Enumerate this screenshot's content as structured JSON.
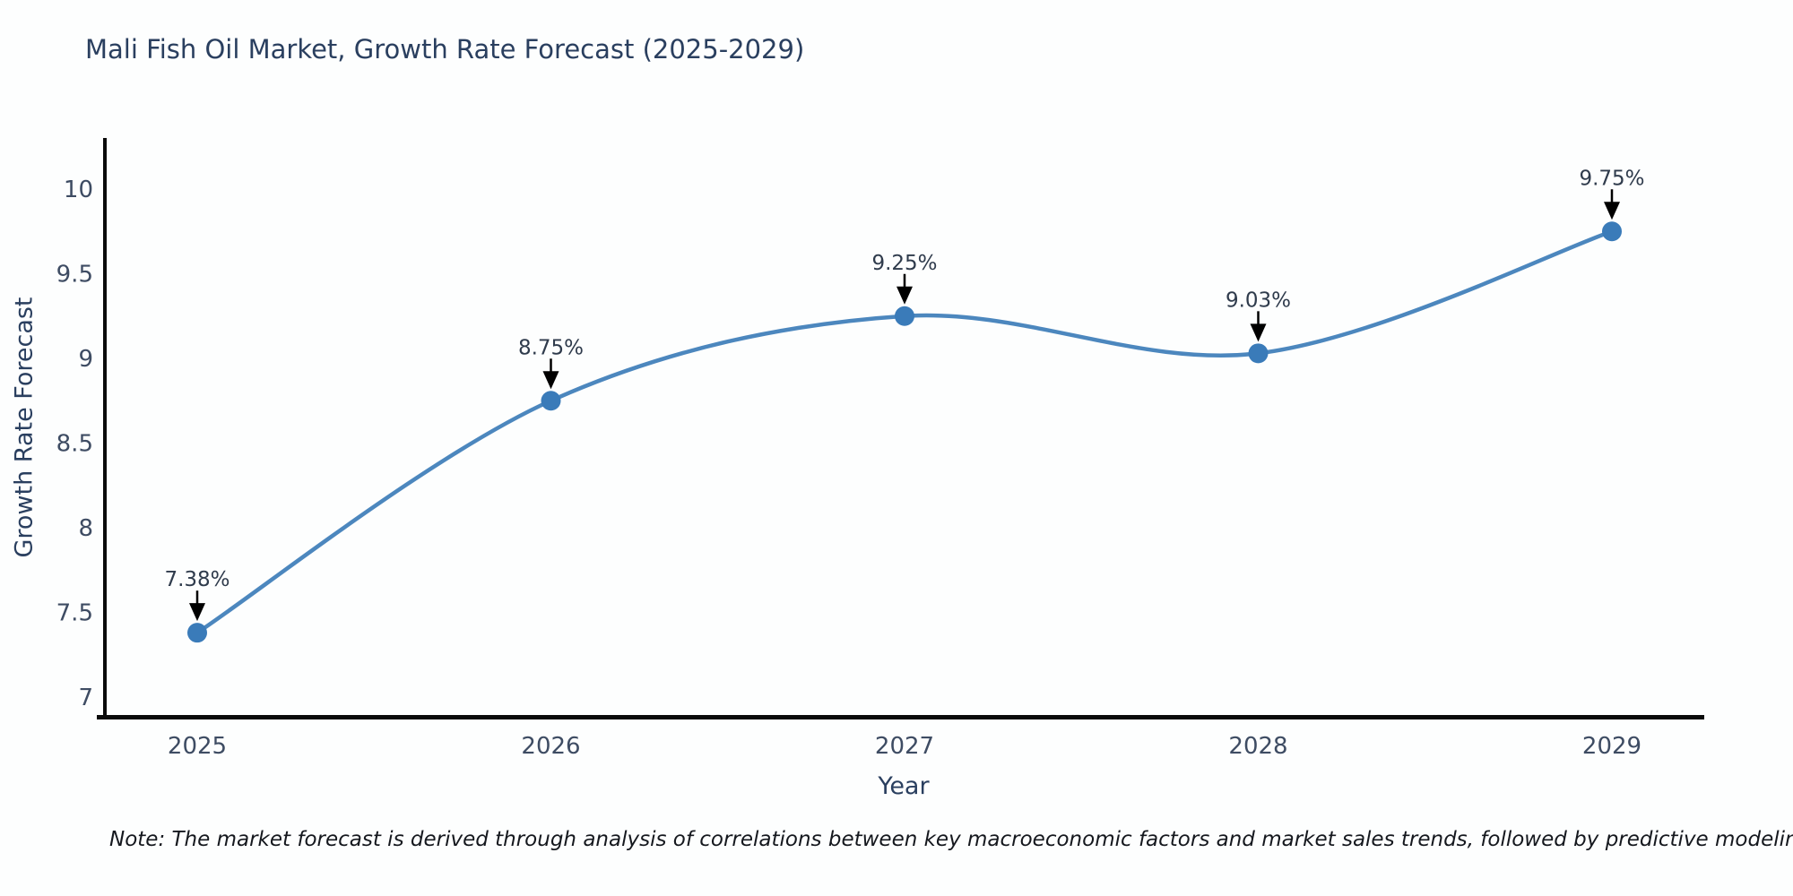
{
  "title": "Mali Fish Oil Market, Growth Rate Forecast (2025-2029)",
  "note": "Note: The market forecast is derived through analysis of correlations between key macroeconomic factors and market sales trends, followed by predictive modeling to project future sales",
  "chart_data": {
    "type": "line",
    "title": "Mali Fish Oil Market, Growth Rate Forecast (2025-2029)",
    "xlabel": "Year",
    "ylabel": "Growth Rate Forecast",
    "x": [
      "2025",
      "2026",
      "2027",
      "2028",
      "2029"
    ],
    "values": [
      7.38,
      8.75,
      9.25,
      9.03,
      9.75
    ],
    "point_labels": [
      "7.38%",
      "8.75%",
      "9.25%",
      "9.03%",
      "9.75%"
    ],
    "yticks": [
      10,
      9.5,
      9,
      8.5,
      8,
      7.5,
      7
    ],
    "ylim": [
      7,
      10
    ],
    "line_shape": "spline",
    "grid": false,
    "legend": "none",
    "colors": {
      "line": "#4c87be",
      "marker": "#3a7bb9",
      "axis": "#0a0a0a",
      "tick_label": "#3e4c63",
      "annotation_text": "#2f3b4c",
      "annotation_arrow": "#000000",
      "title_text": "#2a3f5f"
    }
  }
}
